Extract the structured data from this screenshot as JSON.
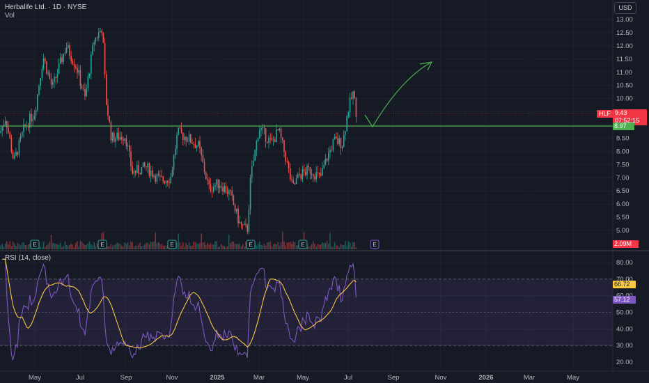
{
  "header": {
    "symbol_line": "Herbalife Ltd. · 1D · NYSE",
    "vol_label": "Vol",
    "currency_button": "USD"
  },
  "price_axis": {
    "ticks": [
      "13.00",
      "12.50",
      "12.00",
      "11.50",
      "11.00",
      "10.50",
      "10.00",
      "9.50",
      "9.00",
      "8.50",
      "8.00",
      "7.50",
      "7.00",
      "6.50",
      "6.00",
      "5.50",
      "5.00"
    ]
  },
  "price_labels": {
    "ticker": "HLF",
    "last_price": "9.43",
    "countdown": "07:52:15",
    "support_level": "8.97",
    "volume": "2.09M"
  },
  "rsi_pane": {
    "title": "RSI (14, close)",
    "ticks": [
      "80.00",
      "70.00",
      "60.00",
      "50.00",
      "40.00",
      "30.00",
      "20.00"
    ],
    "rsi_value": "57.12",
    "ma_value": "66.72",
    "upper_band": 70,
    "lower_band": 30
  },
  "time_axis": {
    "labels": [
      "May",
      "Jul",
      "Sep",
      "Nov",
      "2025",
      "Mar",
      "May",
      "Jul",
      "Sep",
      "Nov",
      "2026",
      "Mar",
      "May"
    ]
  },
  "earnings_marker": "E",
  "colors": {
    "background": "#161a25",
    "up": "#26a69a",
    "down": "#ef5350",
    "support_line": "#4caf50",
    "rsi_line": "#7e57c2",
    "rsi_ma": "#f7c843",
    "last_price_tag": "#f23645",
    "support_tag": "#4caf50"
  },
  "chart_data": {
    "type": "candlestick",
    "instrument": "Herbalife Ltd.",
    "interval": "1D",
    "exchange": "NYSE",
    "approx_close_path": [
      {
        "date": "2024-04",
        "close": 8.6
      },
      {
        "date": "2024-05",
        "close": 10.5
      },
      {
        "date": "2024-06",
        "close": 11.7
      },
      {
        "date": "2024-07",
        "close": 11.2
      },
      {
        "date": "2024-08",
        "close": 12.6
      },
      {
        "date": "2024-08-late",
        "close": 8.8
      },
      {
        "date": "2024-09",
        "close": 7.6
      },
      {
        "date": "2024-10",
        "close": 7.0
      },
      {
        "date": "2024-11",
        "close": 8.7
      },
      {
        "date": "2024-12",
        "close": 7.7
      },
      {
        "date": "2025-01",
        "close": 6.5
      },
      {
        "date": "2025-02",
        "close": 5.1
      },
      {
        "date": "2025-03",
        "close": 8.9
      },
      {
        "date": "2025-04",
        "close": 7.9
      },
      {
        "date": "2025-05",
        "close": 6.5
      },
      {
        "date": "2025-06",
        "close": 7.8
      },
      {
        "date": "2025-07",
        "close": 9.43
      }
    ],
    "support_level": 8.97,
    "last_price": 9.43,
    "ylim": [
      4.8,
      13.3
    ]
  }
}
